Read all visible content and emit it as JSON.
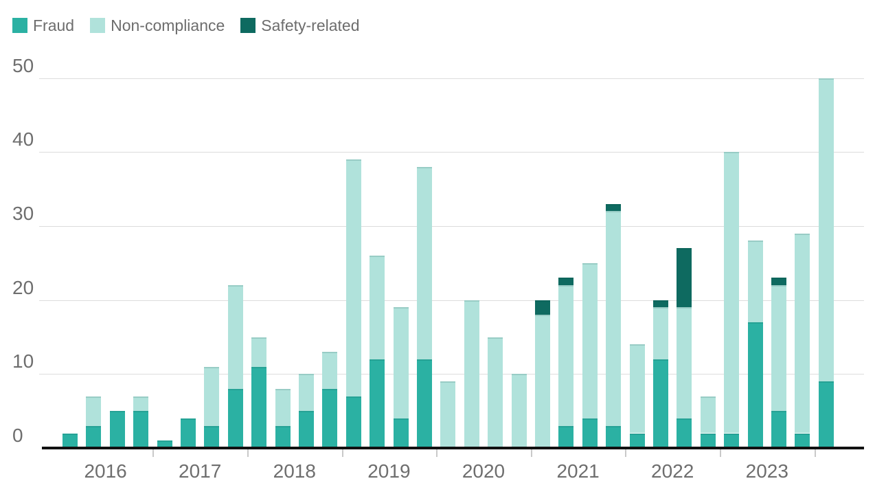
{
  "legend": {
    "items": [
      {
        "label": "Fraud",
        "key": "fraud"
      },
      {
        "label": "Non-compliance",
        "key": "noncompliance"
      },
      {
        "label": "Safety-related",
        "key": "safety"
      }
    ]
  },
  "colors": {
    "fraud": "#2bb1a3",
    "noncompliance": "#b0e2db",
    "safety": "#0e6a60",
    "grid": "#dcdcdc",
    "axis": "#111111",
    "tick": "#c9c9c9",
    "text": "#6e6e6e"
  },
  "chart_data": {
    "type": "bar",
    "stacked": true,
    "title": "",
    "xlabel": "",
    "ylabel": "",
    "ylim": [
      0,
      50
    ],
    "y_ticks": [
      0,
      10,
      20,
      30,
      40,
      50
    ],
    "grid": true,
    "legend_position": "top-left",
    "year_labels": [
      "2016",
      "2017",
      "2018",
      "2019",
      "2020",
      "2021",
      "2022",
      "2023"
    ],
    "bars_per_year": 4,
    "categories": [
      "2016 Q1",
      "2016 Q2",
      "2016 Q3",
      "2016 Q4",
      "2017 Q1",
      "2017 Q2",
      "2017 Q3",
      "2017 Q4",
      "2018 Q1",
      "2018 Q2",
      "2018 Q3",
      "2018 Q4",
      "2019 Q1",
      "2019 Q2",
      "2019 Q3",
      "2019 Q4",
      "2020 Q1",
      "2020 Q2",
      "2020 Q3",
      "2020 Q4",
      "2021 Q1",
      "2021 Q2",
      "2021 Q3",
      "2021 Q4",
      "2022 Q1",
      "2022 Q2",
      "2022 Q3",
      "2022 Q4",
      "2023 Q1",
      "2023 Q2",
      "2023 Q3",
      "2023 Q4",
      "2024 Q1"
    ],
    "series": [
      {
        "name": "Fraud",
        "key": "fraud",
        "values": [
          2,
          3,
          5,
          5,
          1,
          4,
          3,
          8,
          11,
          3,
          5,
          8,
          7,
          12,
          4,
          12,
          0,
          0,
          0,
          0,
          0,
          3,
          4,
          3,
          2,
          12,
          4,
          2,
          2,
          17,
          5,
          2,
          9
        ]
      },
      {
        "name": "Non-compliance",
        "key": "noncompliance",
        "values": [
          0,
          4,
          0,
          2,
          0,
          0,
          8,
          14,
          4,
          5,
          5,
          5,
          32,
          14,
          15,
          26,
          9,
          20,
          15,
          10,
          18,
          19,
          21,
          29,
          12,
          7,
          15,
          5,
          38,
          11,
          17,
          27,
          41
        ]
      },
      {
        "name": "Safety-related",
        "key": "safety",
        "values": [
          0,
          0,
          0,
          0,
          0,
          0,
          0,
          0,
          0,
          0,
          0,
          0,
          0,
          0,
          0,
          0,
          0,
          0,
          0,
          0,
          2,
          1,
          0,
          1,
          0,
          1,
          8,
          0,
          0,
          0,
          1,
          0,
          0
        ]
      }
    ],
    "totals": [
      2,
      7,
      5,
      7,
      1,
      4,
      11,
      22,
      15,
      8,
      10,
      13,
      39,
      26,
      19,
      38,
      9,
      20,
      15,
      10,
      20,
      23,
      25,
      33,
      14,
      20,
      27,
      7,
      40,
      28,
      23,
      29,
      50
    ]
  }
}
